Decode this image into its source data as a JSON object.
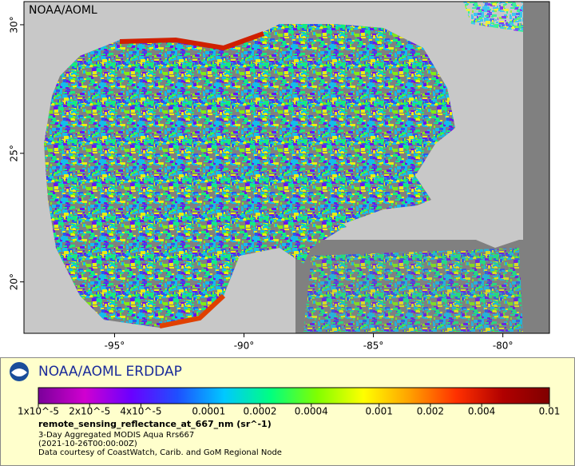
{
  "map": {
    "watermark": "NOAA/AOML",
    "lon_range": [
      -98.5,
      -78.2
    ],
    "lat_range": [
      18,
      30.9
    ],
    "lat_ticks": [
      {
        "value": 30,
        "label": "30°"
      },
      {
        "value": 25,
        "label": "25°"
      },
      {
        "value": 20,
        "label": "20°"
      }
    ],
    "lon_ticks": [
      {
        "value": -95,
        "label": "-95°"
      },
      {
        "value": -90,
        "label": "-90°"
      },
      {
        "value": -85,
        "label": "-85°"
      },
      {
        "value": -80,
        "label": "-80°"
      }
    ]
  },
  "footer": {
    "title": "NOAA/AOML ERDDAP",
    "colorbar": {
      "scale": "log",
      "range": [
        1e-05,
        0.01
      ],
      "colors": [
        "#7a009a",
        "#d000d0",
        "#6a00ff",
        "#1e50ff",
        "#00c8ff",
        "#00ff80",
        "#80ff00",
        "#ffff00",
        "#ffa000",
        "#ff3000",
        "#b00000",
        "#800000"
      ],
      "ticks": [
        {
          "value": 1e-05,
          "label": "1x10^-5"
        },
        {
          "value": 2e-05,
          "label": "2x10^-5"
        },
        {
          "value": 4e-05,
          "label": "4x10^-5"
        },
        0.0001,
        0.0002,
        0.0004,
        0.001,
        0.002,
        0.004,
        0.01
      ]
    },
    "variable": "remote_sensing_reflectance_at_667_nm (sr^-1)",
    "lines": [
      "3-Day Aggregated MODIS Aqua Rrs667",
      "(2021-10-26T00:00:00Z)",
      "Data courtesy of CoastWatch, Carib. and GoM Regional Node"
    ]
  }
}
